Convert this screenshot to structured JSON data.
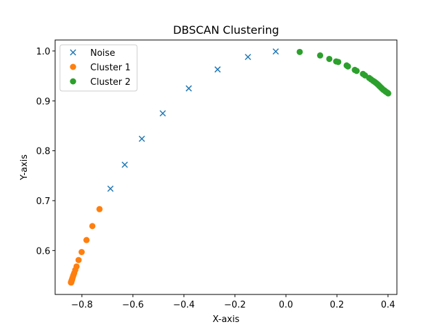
{
  "chart_data": {
    "type": "scatter",
    "title": "DBSCAN Clustering",
    "xlabel": "X-axis",
    "ylabel": "Y-axis",
    "xlim": [
      -0.905,
      0.435
    ],
    "ylim": [
      0.512,
      1.022
    ],
    "xticks": [
      -0.8,
      -0.6,
      -0.4,
      -0.2,
      0.0,
      0.2,
      0.4
    ],
    "yticks": [
      0.6,
      0.7,
      0.8,
      0.9,
      1.0
    ],
    "legend": "top-left",
    "grid": false,
    "series": [
      {
        "name": "Noise",
        "marker": "x",
        "color": "#1f77b4",
        "points": [
          [
            -0.688,
            0.724
          ],
          [
            -0.632,
            0.772
          ],
          [
            -0.565,
            0.824
          ],
          [
            -0.483,
            0.875
          ],
          [
            -0.381,
            0.925
          ],
          [
            -0.268,
            0.963
          ],
          [
            -0.149,
            0.988
          ],
          [
            -0.04,
            0.999
          ]
        ]
      },
      {
        "name": "Cluster 1",
        "marker": "o",
        "color": "#ff7f0e",
        "points": [
          [
            -0.731,
            0.683
          ],
          [
            -0.759,
            0.649
          ],
          [
            -0.782,
            0.621
          ],
          [
            -0.801,
            0.597
          ],
          [
            -0.813,
            0.581
          ],
          [
            -0.821,
            0.568
          ],
          [
            -0.826,
            0.561
          ],
          [
            -0.83,
            0.555
          ],
          [
            -0.833,
            0.551
          ],
          [
            -0.835,
            0.548
          ],
          [
            -0.837,
            0.545
          ],
          [
            -0.838,
            0.543
          ],
          [
            -0.839,
            0.541
          ],
          [
            -0.84,
            0.54
          ],
          [
            -0.841,
            0.539
          ],
          [
            -0.841,
            0.538
          ],
          [
            -0.842,
            0.537
          ],
          [
            -0.842,
            0.537
          ],
          [
            -0.842,
            0.536
          ],
          [
            -0.843,
            0.536
          ]
        ]
      },
      {
        "name": "Cluster 2",
        "marker": "o",
        "color": "#2ca02c",
        "points": [
          [
            0.054,
            0.998
          ],
          [
            0.134,
            0.991
          ],
          [
            0.17,
            0.984
          ],
          [
            0.197,
            0.979
          ],
          [
            0.205,
            0.978
          ],
          [
            0.238,
            0.971
          ],
          [
            0.243,
            0.969
          ],
          [
            0.27,
            0.962
          ],
          [
            0.277,
            0.96
          ],
          [
            0.302,
            0.954
          ],
          [
            0.31,
            0.951
          ],
          [
            0.326,
            0.946
          ],
          [
            0.334,
            0.943
          ],
          [
            0.342,
            0.94
          ],
          [
            0.348,
            0.938
          ],
          [
            0.353,
            0.936
          ],
          [
            0.358,
            0.934
          ],
          [
            0.362,
            0.932
          ],
          [
            0.366,
            0.93
          ],
          [
            0.37,
            0.928
          ],
          [
            0.374,
            0.926
          ],
          [
            0.378,
            0.924
          ],
          [
            0.382,
            0.922
          ],
          [
            0.386,
            0.921
          ],
          [
            0.39,
            0.919
          ],
          [
            0.393,
            0.918
          ],
          [
            0.396,
            0.917
          ],
          [
            0.399,
            0.916
          ],
          [
            0.401,
            0.915
          ]
        ]
      }
    ]
  }
}
